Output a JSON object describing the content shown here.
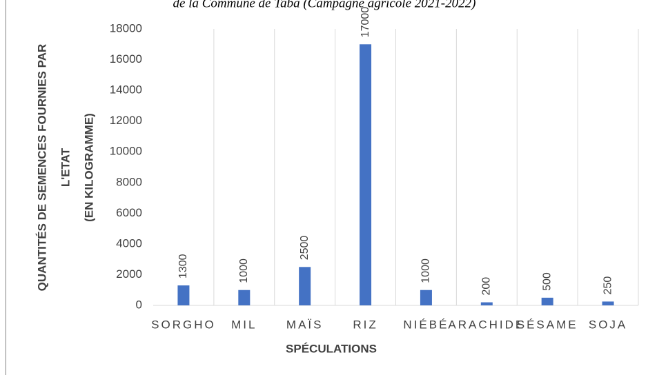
{
  "chart_data": {
    "type": "bar",
    "title": "de la Commune de Taba (Campagne agricole 2021-2022)",
    "ylabel": [
      "QUANTITÉS DE SEMENCES FOURNIES PAR",
      "L'ETAT",
      "(EN KILOGRAMME)"
    ],
    "xlabel": "SPÉCULATIONS",
    "categories": [
      "SORGHO",
      "MIL",
      "MAÏS",
      "RIZ",
      "NIÉBÉ",
      "ARACHIDE",
      "SÉSAME",
      "SOJA"
    ],
    "values": [
      1300,
      1000,
      2500,
      17000,
      1000,
      200,
      500,
      250
    ],
    "color": "#4472c4",
    "ylim": [
      0,
      18000
    ],
    "yticks": [
      0,
      2000,
      4000,
      6000,
      8000,
      10000,
      12000,
      14000,
      16000,
      18000
    ],
    "grid": true
  }
}
